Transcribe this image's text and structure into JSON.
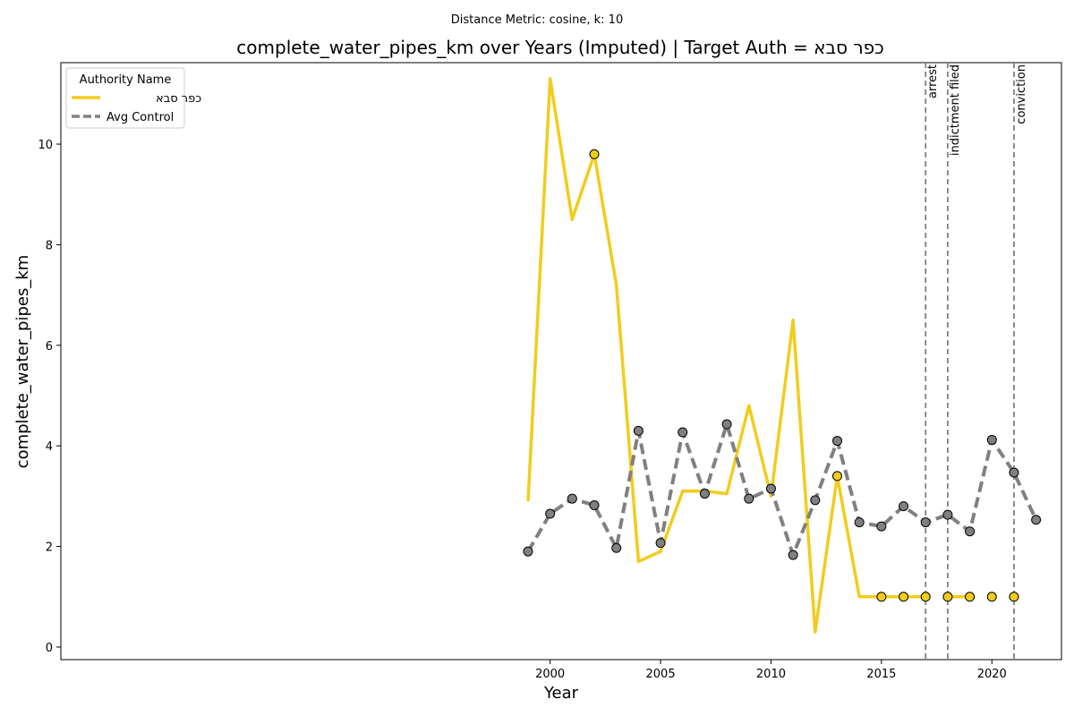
{
  "chart_data": {
    "type": "line",
    "suptitle": "Distance Metric: cosine, k: 10",
    "title": "complete_water_pipes_km over Years (Imputed) | Target Auth = כפר סבא",
    "xlabel": "Year",
    "ylabel": "complete_water_pipes_km",
    "xlim": [
      1977.85,
      2023.15
    ],
    "ylim": [
      -0.25,
      11.62
    ],
    "xticks": [
      2000,
      2005,
      2010,
      2015,
      2020
    ],
    "yticks": [
      0,
      2,
      4,
      6,
      8,
      10
    ],
    "grid": false,
    "legend": {
      "title": "Authority Name",
      "placement": "top-left"
    },
    "series": [
      {
        "name": "כפר סבא",
        "color": "#f2cc1d",
        "style": "solid",
        "points": [
          {
            "x": 1999,
            "y": 2.9
          },
          {
            "x": 2000,
            "y": 11.3
          },
          {
            "x": 2001,
            "y": 8.5
          },
          {
            "x": 2002,
            "y": 9.8
          },
          {
            "x": 2003,
            "y": 7.2
          },
          {
            "x": 2004,
            "y": 1.7
          },
          {
            "x": 2005,
            "y": 1.9
          },
          {
            "x": 2006,
            "y": 3.1
          },
          {
            "x": 2007,
            "y": 3.1
          },
          {
            "x": 2008,
            "y": 3.05
          },
          {
            "x": 2009,
            "y": 4.8
          },
          {
            "x": 2010,
            "y": 3.0
          },
          {
            "x": 2011,
            "y": 6.5
          },
          {
            "x": 2012,
            "y": 0.3
          },
          {
            "x": 2013,
            "y": 3.4
          },
          {
            "x": 2014,
            "y": 1.0
          },
          {
            "x": 2015,
            "y": 1.0
          },
          {
            "x": 2016,
            "y": 1.0
          },
          {
            "x": 2017,
            "y": 1.0
          },
          {
            "x": 2018,
            "y": 1.0
          },
          {
            "x": 2019,
            "y": 1.0
          },
          {
            "x": 2020,
            "y": 1.0
          },
          {
            "x": 2021,
            "y": 1.0
          }
        ],
        "segments": [
          [
            1999,
            2017
          ],
          [
            2018,
            2019
          ]
        ],
        "markers": [
          2002,
          2013,
          2015,
          2016,
          2017,
          2018,
          2019,
          2020,
          2021
        ]
      },
      {
        "name": "Avg Control",
        "color": "#808080",
        "style": "dashed",
        "points": [
          {
            "x": 1999,
            "y": 1.9
          },
          {
            "x": 2000,
            "y": 2.65
          },
          {
            "x": 2001,
            "y": 2.95
          },
          {
            "x": 2002,
            "y": 2.82
          },
          {
            "x": 2003,
            "y": 1.97
          },
          {
            "x": 2004,
            "y": 4.3
          },
          {
            "x": 2005,
            "y": 2.07
          },
          {
            "x": 2006,
            "y": 4.27
          },
          {
            "x": 2007,
            "y": 3.05
          },
          {
            "x": 2008,
            "y": 4.43
          },
          {
            "x": 2009,
            "y": 2.95
          },
          {
            "x": 2010,
            "y": 3.15
          },
          {
            "x": 2011,
            "y": 1.83
          },
          {
            "x": 2012,
            "y": 2.92
          },
          {
            "x": 2013,
            "y": 4.1
          },
          {
            "x": 2014,
            "y": 2.48
          },
          {
            "x": 2015,
            "y": 2.4
          },
          {
            "x": 2016,
            "y": 2.8
          },
          {
            "x": 2017,
            "y": 2.48
          },
          {
            "x": 2018,
            "y": 2.63
          },
          {
            "x": 2019,
            "y": 2.3
          },
          {
            "x": 2020,
            "y": 4.12
          },
          {
            "x": 2021,
            "y": 3.47
          },
          {
            "x": 2022,
            "y": 2.53
          }
        ],
        "markers": "all"
      }
    ],
    "events": [
      {
        "x": 2017,
        "label": "arrest"
      },
      {
        "x": 2018,
        "label": "indictment filed"
      },
      {
        "x": 2021,
        "label": "conviction"
      }
    ]
  }
}
